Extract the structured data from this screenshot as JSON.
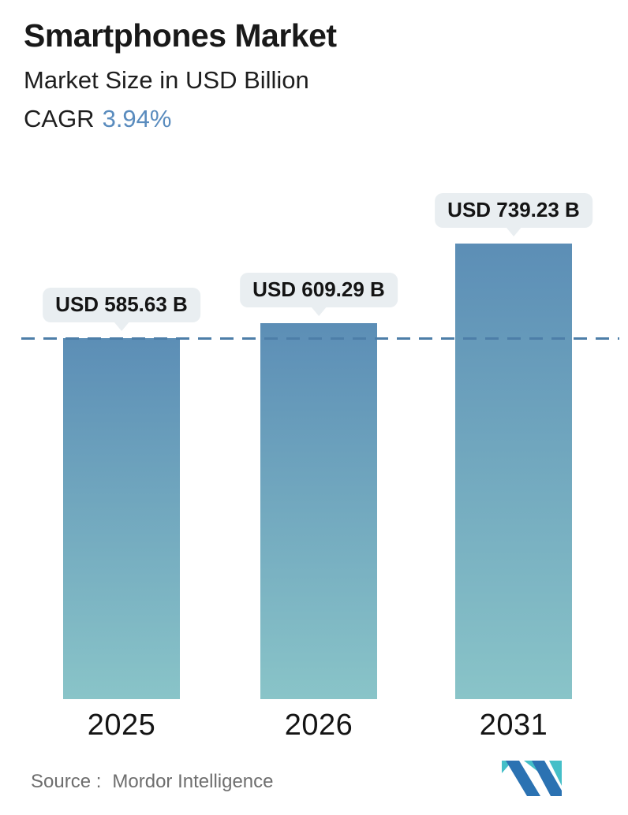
{
  "header": {
    "title": "Smartphones Market",
    "subtitle": "Market Size in USD Billion",
    "cagr_label": "CAGR",
    "cagr_value": "3.94%"
  },
  "chart_data": {
    "type": "bar",
    "title": "Smartphones Market",
    "subtitle": "Market Size in USD Billion",
    "unit": "USD Billion",
    "categories": [
      "2025",
      "2026",
      "2031"
    ],
    "values": [
      585.63,
      609.29,
      739.23
    ],
    "value_labels": [
      "USD 585.63 B",
      "USD 609.29 B",
      "USD 739.23 B"
    ],
    "cagr_percent": 3.94,
    "xlabel": "",
    "ylabel": "",
    "ylim": [
      0,
      780
    ],
    "grid": false,
    "legend": "none",
    "reference_line": {
      "value": 585.63,
      "style": "dashed"
    },
    "bar_colors": {
      "top": "#5c8eb6",
      "bottom": "#89c4c8"
    }
  },
  "footer": {
    "source_label": "Source :",
    "source_value": "Mordor Intelligence",
    "logo": "mordor-intelligence-logo"
  },
  "colors": {
    "accent_blue": "#5a8cbe",
    "dashed_line": "#4d7ea8",
    "label_pill_bg": "#e9eef1",
    "text_dark": "#191919",
    "source_gray": "#6e6e6e",
    "logo_blue": "#2b72b2",
    "logo_teal": "#45bfc8"
  }
}
